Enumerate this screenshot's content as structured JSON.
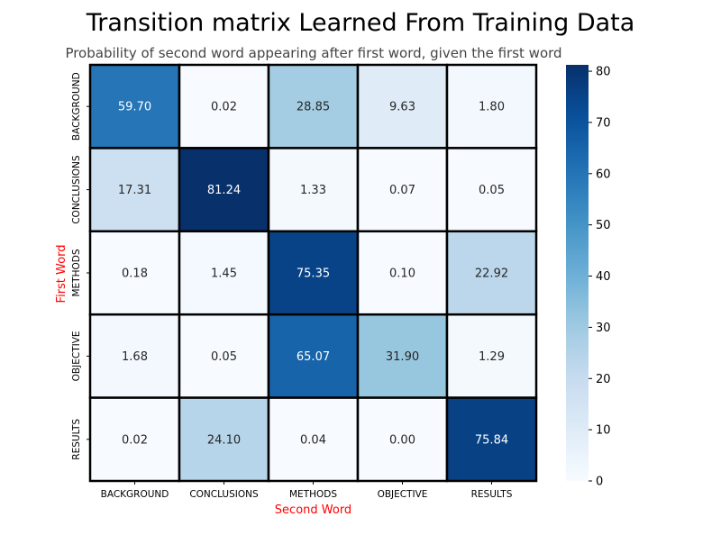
{
  "chart_data": {
    "type": "heatmap",
    "title": "Transition matrix Learned From Training Data",
    "subtitle": "Probability of second word appearing after first word, given the first word",
    "xlabel": "Second Word",
    "ylabel": "First Word",
    "label_color": "#ff0000",
    "x_categories": [
      "BACKGROUND",
      "CONCLUSIONS",
      "METHODS",
      "OBJECTIVE",
      "RESULTS"
    ],
    "y_categories": [
      "BACKGROUND",
      "CONCLUSIONS",
      "METHODS",
      "OBJECTIVE",
      "RESULTS"
    ],
    "values": [
      [
        59.7,
        0.02,
        28.85,
        9.63,
        1.8
      ],
      [
        17.31,
        81.24,
        1.33,
        0.07,
        0.05
      ],
      [
        0.18,
        1.45,
        75.35,
        0.1,
        22.92
      ],
      [
        1.68,
        0.05,
        65.07,
        31.9,
        1.29
      ],
      [
        0.02,
        24.1,
        0.04,
        0.0,
        75.84
      ]
    ],
    "value_format": "2 decimals",
    "colormap": "Blues",
    "color_range": [
      0,
      81.24
    ],
    "colorbar_ticks": [
      0,
      10,
      20,
      30,
      40,
      50,
      60,
      70,
      80
    ],
    "cell_borders": "black",
    "legend": "colorbar-right"
  }
}
